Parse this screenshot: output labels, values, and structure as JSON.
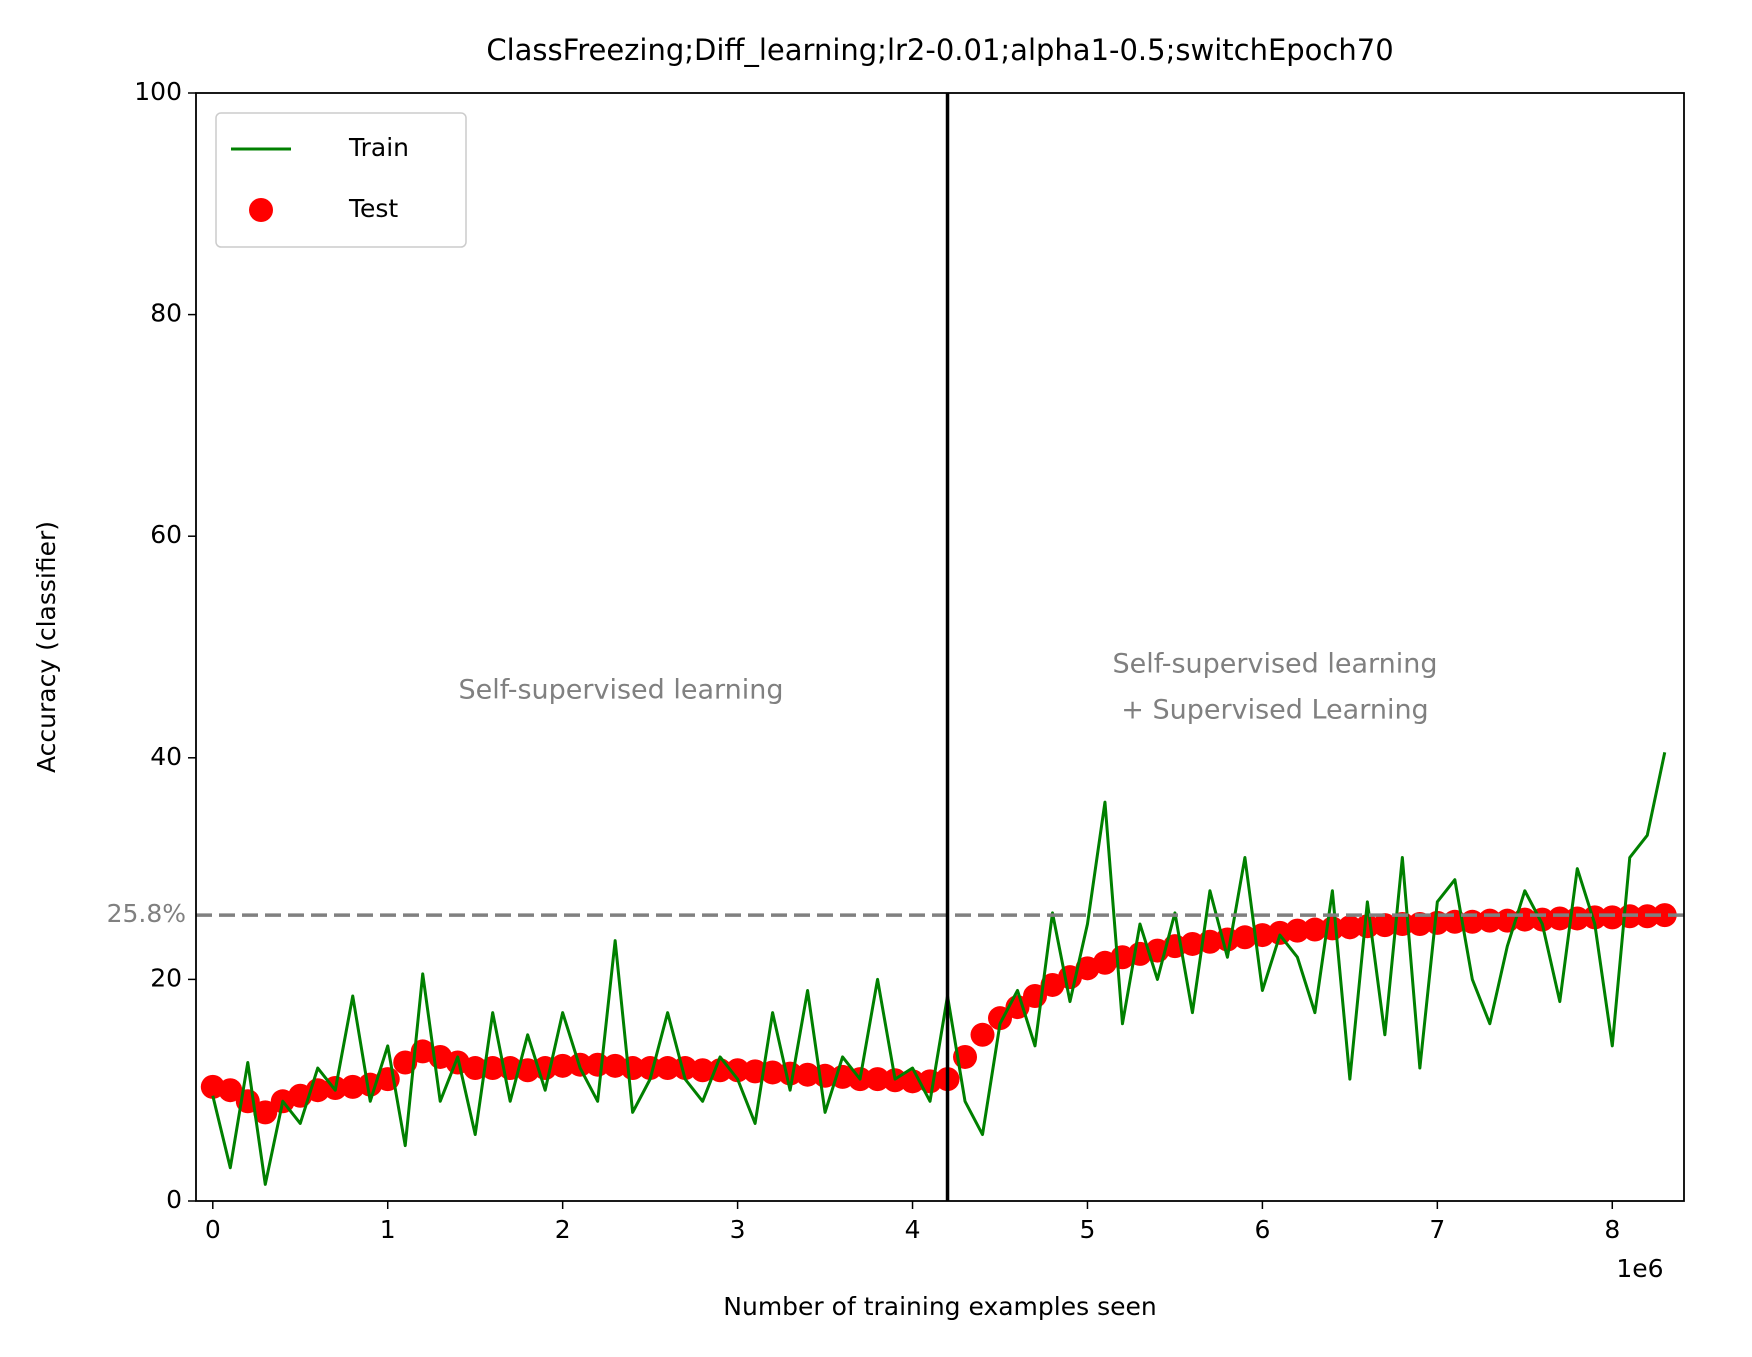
{
  "chart_data": {
    "type": "line",
    "title": "ClassFreezing;Diff_learning;lr2-0.01;alpha1-0.5;switchEpoch70",
    "x_label": "Number of training examples seen",
    "y_label": "Accuracy (classifier)",
    "x_offset_label": "1e6",
    "xlim": [
      -0.096,
      8.41
    ],
    "ylim": [
      0,
      100
    ],
    "xticks": [
      0,
      1,
      2,
      3,
      4,
      5,
      6,
      7,
      8
    ],
    "yticks": [
      0,
      20,
      40,
      60,
      80,
      100
    ],
    "legend": "upper left",
    "x": [
      0,
      0.1,
      0.2,
      0.3,
      0.4,
      0.5,
      0.6,
      0.7,
      0.8,
      0.9,
      1,
      1.1,
      1.2,
      1.3,
      1.4,
      1.5,
      1.6,
      1.7,
      1.8,
      1.9,
      2,
      2.1,
      2.2,
      2.3,
      2.4,
      2.5,
      2.6,
      2.7,
      2.8,
      2.9,
      3,
      3.1,
      3.2,
      3.3,
      3.4,
      3.5,
      3.6,
      3.7,
      3.8,
      3.9,
      4,
      4.1,
      4.2,
      4.3,
      4.4,
      4.5,
      4.6,
      4.7,
      4.8,
      4.9,
      5,
      5.1,
      5.2,
      5.3,
      5.4,
      5.5,
      5.6,
      5.7,
      5.8,
      5.9,
      6,
      6.1,
      6.2,
      6.3,
      6.4,
      6.5,
      6.6,
      6.7,
      6.8,
      6.9,
      7,
      7.1,
      7.2,
      7.3,
      7.4,
      7.5,
      7.6,
      7.7,
      7.8,
      7.9,
      8,
      8.1,
      8.2,
      8.3
    ],
    "series": [
      {
        "name": "Test",
        "type": "scatter",
        "color": "#ff0000",
        "values": [
          10.3,
          10,
          9,
          8,
          9,
          9.5,
          10,
          10.2,
          10.3,
          10.5,
          11,
          12.5,
          13.5,
          13,
          12.5,
          12,
          12,
          12,
          11.8,
          12,
          12.2,
          12.3,
          12.3,
          12.2,
          12,
          12,
          12,
          12,
          11.8,
          11.8,
          11.8,
          11.7,
          11.6,
          11.5,
          11.4,
          11.3,
          11.2,
          11,
          11,
          10.9,
          10.8,
          10.8,
          11,
          13,
          15,
          16.5,
          17.5,
          18.5,
          19.5,
          20.2,
          21,
          21.5,
          22,
          22.3,
          22.6,
          23,
          23.2,
          23.4,
          23.6,
          23.8,
          24,
          24.2,
          24.4,
          24.5,
          24.6,
          24.7,
          24.8,
          24.9,
          25,
          25,
          25.1,
          25.2,
          25.2,
          25.3,
          25.3,
          25.4,
          25.4,
          25.5,
          25.5,
          25.6,
          25.6,
          25.7,
          25.7,
          25.8
        ]
      },
      {
        "name": "Train",
        "type": "line",
        "color": "#008000",
        "values": [
          9.5,
          3,
          12.5,
          1.5,
          9,
          7,
          12,
          10,
          18.5,
          9,
          14,
          5,
          20.5,
          9,
          13,
          6,
          17,
          9,
          15,
          10,
          17,
          12,
          9,
          23.5,
          8,
          11,
          17,
          11,
          9,
          13,
          11,
          7,
          17,
          10,
          19,
          8,
          13,
          11,
          20,
          11,
          12,
          9,
          18.5,
          9,
          6,
          16,
          19,
          14,
          26,
          18,
          25,
          36,
          16,
          25,
          20,
          26,
          17,
          28,
          22,
          31,
          19,
          24,
          22,
          17,
          28,
          11,
          27,
          15,
          31,
          12,
          27,
          29,
          20,
          16,
          23,
          28,
          25,
          18,
          30,
          25,
          14,
          31,
          33,
          40.5
        ]
      }
    ],
    "hline": {
      "value": 25.8,
      "label": "25.8%",
      "color": "#808080"
    },
    "vline": {
      "value": 4.2,
      "color": "#000000"
    },
    "annotations": [
      {
        "lines": [
          "Self-supervised learning"
        ]
      },
      {
        "lines": [
          "Self-supervised learning",
          "+ Supervised Learning"
        ]
      }
    ]
  }
}
